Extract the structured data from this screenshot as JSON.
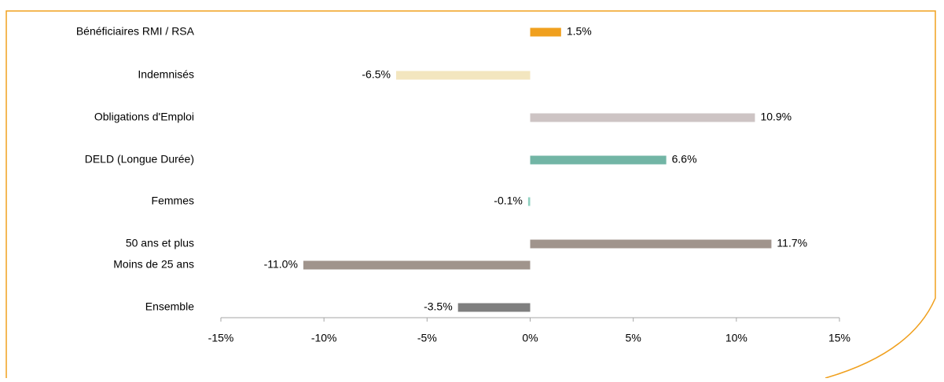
{
  "chart_data": {
    "type": "bar",
    "orientation": "horizontal",
    "categories": [
      "Bénéficiaires RMI / RSA",
      "Indemnisés",
      "Obligations d'Emploi",
      "DELD (Longue Durée)",
      "Femmes",
      "50 ans et plus",
      "Moins de 25 ans",
      "Ensemble"
    ],
    "values": [
      1.5,
      -6.5,
      10.9,
      6.6,
      -0.1,
      11.7,
      -11.0,
      -3.5
    ],
    "value_labels": [
      "1.5%",
      "-6.5%",
      "10.9%",
      "6.6%",
      "-0.1%",
      "11.7%",
      "-11.0%",
      "-3.5%"
    ],
    "colors": [
      "#f0a01e",
      "#f3e6bf",
      "#cdc4c4",
      "#72b5a5",
      "#8fd0c0",
      "#a0948c",
      "#a0948c",
      "#7f7f7f"
    ],
    "xlim": [
      -15,
      15
    ],
    "xticks": [
      {
        "value": -15,
        "label": "-15%"
      },
      {
        "value": -10,
        "label": "-10%"
      },
      {
        "value": -5,
        "label": "-5%"
      },
      {
        "value": 0,
        "label": "0%"
      },
      {
        "value": 5,
        "label": "5%"
      },
      {
        "value": 10,
        "label": "10%"
      },
      {
        "value": 15,
        "label": "15%"
      }
    ],
    "grid": false
  }
}
